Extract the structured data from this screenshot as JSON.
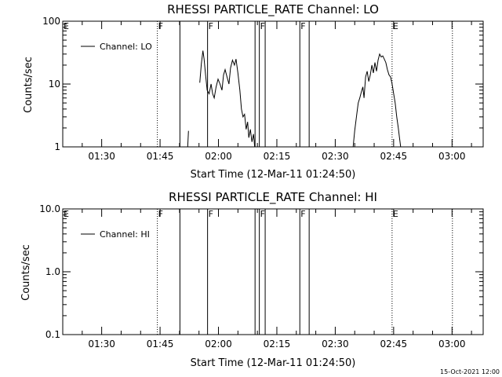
{
  "footer": {
    "timestamp": "15-Oct-2021 12:00"
  },
  "chart_data": [
    {
      "type": "line",
      "title": "RHESSI PARTICLE_RATE Channel: LO",
      "xlabel": "Start Time (12-Mar-11 01:24:50)",
      "ylabel": "Counts/sec",
      "yscale": "log",
      "ylim": [
        1,
        100
      ],
      "xlim_minutes": [
        80.0,
        188.0
      ],
      "x_ticks": [
        {
          "label": "01:30",
          "minutes": 90
        },
        {
          "label": "01:45",
          "minutes": 105
        },
        {
          "label": "02:00",
          "minutes": 120
        },
        {
          "label": "02:15",
          "minutes": 135
        },
        {
          "label": "02:30",
          "minutes": 150
        },
        {
          "label": "02:45",
          "minutes": 165
        },
        {
          "label": "03:00",
          "minutes": 180
        }
      ],
      "y_ticks": [
        {
          "label": "1",
          "value": 1
        },
        {
          "label": "10",
          "value": 10
        },
        {
          "label": "100",
          "value": 100
        }
      ],
      "legend": {
        "label": "Channel: LO",
        "placement": "top-left"
      },
      "flags": [
        {
          "label": "E",
          "minutes": 80.0,
          "style": "none"
        },
        {
          "label": "F",
          "minutes": 104.3,
          "style": "dotted"
        },
        {
          "label": "",
          "minutes": 110.1,
          "style": "solid"
        },
        {
          "label": "F",
          "minutes": 117.2,
          "style": "solid"
        },
        {
          "label": "",
          "minutes": 129.4,
          "style": "solid"
        },
        {
          "label": "F",
          "minutes": 130.5,
          "style": "solid"
        },
        {
          "label": "",
          "minutes": 132.0,
          "style": "solid"
        },
        {
          "label": "F",
          "minutes": 140.9,
          "style": "solid"
        },
        {
          "label": "",
          "minutes": 143.3,
          "style": "solid"
        },
        {
          "label": "E",
          "minutes": 164.6,
          "style": "dotted"
        },
        {
          "label": "",
          "minutes": 180.1,
          "style": "dotted"
        }
      ],
      "series": [
        {
          "name": "Channel: LO",
          "segments": [
            [
              [
                112.1,
                1.0
              ],
              [
                112.3,
                1.8
              ]
            ],
            [
              [
                115.2,
                10.5
              ],
              [
                115.6,
                21
              ],
              [
                116.0,
                34
              ],
              [
                116.3,
                25
              ],
              [
                116.7,
                14
              ],
              [
                117.1,
                8
              ],
              [
                117.6,
                7
              ],
              [
                118.1,
                10
              ],
              [
                118.5,
                7
              ],
              [
                118.9,
                6
              ],
              [
                119.4,
                9
              ],
              [
                119.9,
                12
              ],
              [
                120.4,
                10
              ],
              [
                120.9,
                8
              ],
              [
                121.3,
                14
              ],
              [
                121.7,
                17
              ],
              [
                122.2,
                13
              ],
              [
                122.7,
                10
              ],
              [
                123.1,
                18
              ],
              [
                123.6,
                24
              ],
              [
                124.1,
                20
              ],
              [
                124.5,
                25
              ],
              [
                125.0,
                15
              ],
              [
                125.5,
                8
              ],
              [
                125.9,
                4
              ],
              [
                126.3,
                3
              ],
              [
                126.7,
                3.3
              ],
              [
                127.1,
                1.9
              ],
              [
                127.5,
                2.5
              ],
              [
                127.8,
                1.4
              ],
              [
                128.2,
                1.9
              ],
              [
                128.6,
                1.2
              ],
              [
                129.0,
                1.6
              ],
              [
                129.3,
                1.0
              ]
            ],
            [
              [
                154.6,
                1.0
              ],
              [
                155.0,
                1.8
              ],
              [
                155.5,
                3.2
              ],
              [
                155.9,
                5
              ],
              [
                156.3,
                6
              ],
              [
                156.7,
                7.5
              ],
              [
                157.1,
                9
              ],
              [
                157.4,
                6
              ],
              [
                157.8,
                13
              ],
              [
                158.2,
                16
              ],
              [
                158.6,
                11
              ],
              [
                159.0,
                14
              ],
              [
                159.4,
                20
              ],
              [
                159.8,
                15
              ],
              [
                160.2,
                22
              ],
              [
                160.6,
                16
              ],
              [
                161.0,
                24
              ],
              [
                161.4,
                30
              ],
              [
                161.8,
                27
              ],
              [
                162.2,
                28
              ],
              [
                162.6,
                25
              ],
              [
                163.0,
                22
              ],
              [
                163.4,
                17
              ],
              [
                163.8,
                14
              ],
              [
                164.2,
                13
              ],
              [
                164.6,
                10
              ],
              [
                165.0,
                7
              ],
              [
                165.4,
                5
              ],
              [
                165.8,
                3
              ],
              [
                166.2,
                2
              ],
              [
                166.5,
                1.4
              ],
              [
                166.8,
                1.0
              ]
            ]
          ]
        }
      ]
    },
    {
      "type": "line",
      "title": "RHESSI PARTICLE_RATE Channel: HI",
      "xlabel": "Start Time (12-Mar-11 01:24:50)",
      "ylabel": "Counts/sec",
      "yscale": "log",
      "ylim": [
        0.1,
        10.0
      ],
      "xlim_minutes": [
        80.0,
        188.0
      ],
      "x_ticks": [
        {
          "label": "01:30",
          "minutes": 90
        },
        {
          "label": "01:45",
          "minutes": 105
        },
        {
          "label": "02:00",
          "minutes": 120
        },
        {
          "label": "02:15",
          "minutes": 135
        },
        {
          "label": "02:30",
          "minutes": 150
        },
        {
          "label": "02:45",
          "minutes": 165
        },
        {
          "label": "03:00",
          "minutes": 180
        }
      ],
      "y_ticks": [
        {
          "label": "0.1",
          "value": 0.1
        },
        {
          "label": "1.0",
          "value": 1.0
        },
        {
          "label": "10.0",
          "value": 10.0
        }
      ],
      "legend": {
        "label": "Channel: HI",
        "placement": "top-left"
      },
      "flags": [
        {
          "label": "E",
          "minutes": 80.0,
          "style": "none"
        },
        {
          "label": "F",
          "minutes": 104.3,
          "style": "dotted"
        },
        {
          "label": "",
          "minutes": 110.1,
          "style": "solid"
        },
        {
          "label": "F",
          "minutes": 117.2,
          "style": "solid"
        },
        {
          "label": "",
          "minutes": 129.4,
          "style": "solid"
        },
        {
          "label": "F",
          "minutes": 130.5,
          "style": "solid"
        },
        {
          "label": "",
          "minutes": 132.0,
          "style": "solid"
        },
        {
          "label": "F",
          "minutes": 140.9,
          "style": "solid"
        },
        {
          "label": "",
          "minutes": 143.3,
          "style": "solid"
        },
        {
          "label": "E",
          "minutes": 164.6,
          "style": "dotted"
        },
        {
          "label": "",
          "minutes": 180.1,
          "style": "dotted"
        }
      ],
      "series": [
        {
          "name": "Channel: HI",
          "segments": []
        }
      ]
    }
  ]
}
